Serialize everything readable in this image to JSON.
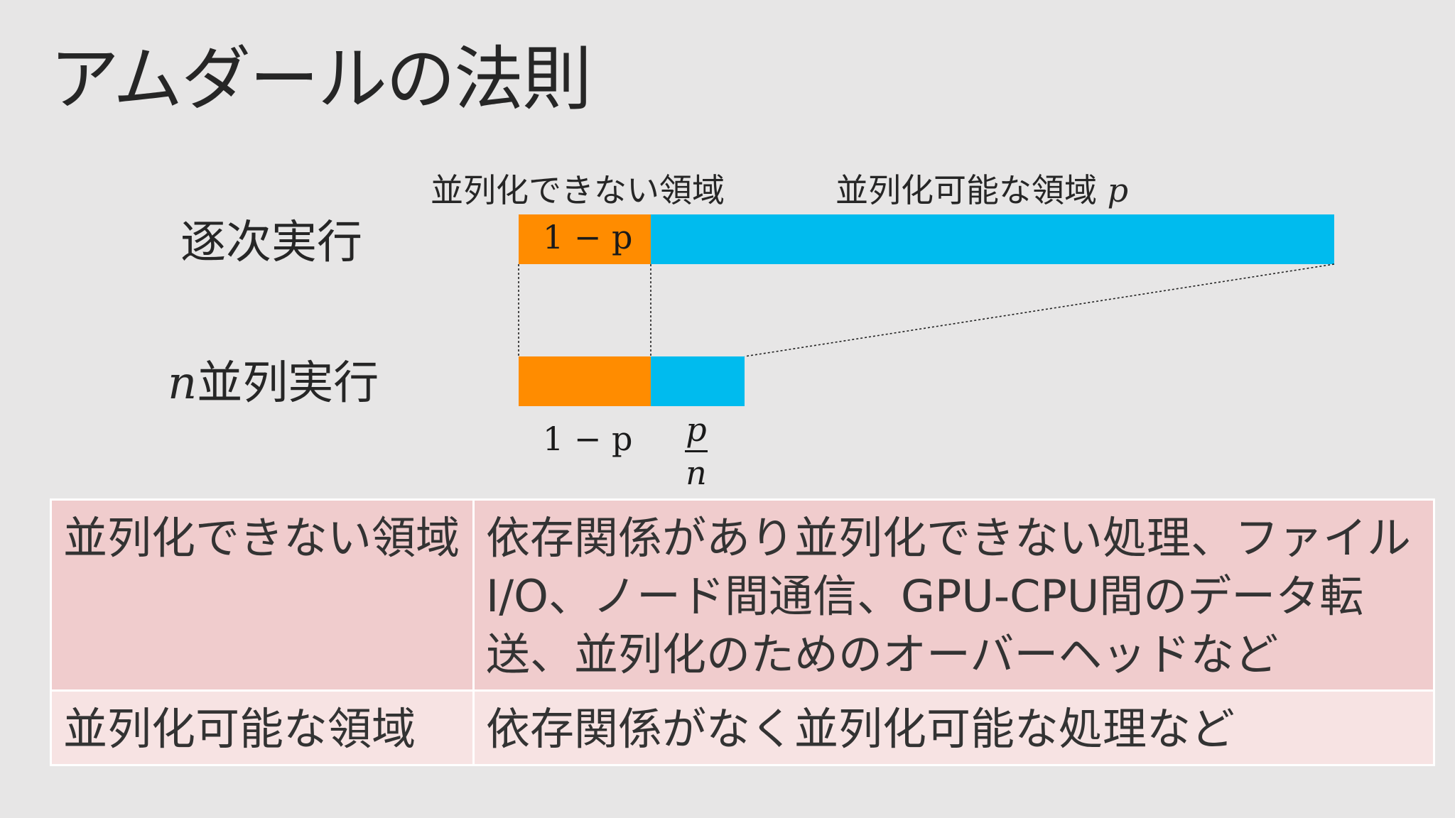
{
  "slide": {
    "title": "アムダールの法則"
  },
  "diagram": {
    "serial_label": "逐次実行",
    "parallel_label_var": "n",
    "parallel_label_text": "並列実行",
    "non_parallel_region_label": "並列化できない領域",
    "parallel_region_label": "並列化可能な領域",
    "parallel_region_var": "p",
    "serial_orange_text": "1 − p",
    "parallel_orange_below": "1 − p",
    "frac_numerator": "p",
    "frac_denominator": "n",
    "colors": {
      "non_parallel": "#ff8c00",
      "parallel": "#00bbee"
    }
  },
  "table": {
    "rows": [
      {
        "region": "並列化できない領域",
        "description": "依存関係があり並列化できない処理、ファイルI/O、ノード間通信、GPU-CPU間のデータ転送、並列化のためのオーバーヘッドなど"
      },
      {
        "region": "並列化可能な領域",
        "description": "依存関係がなく並列化可能な処理など"
      }
    ]
  }
}
